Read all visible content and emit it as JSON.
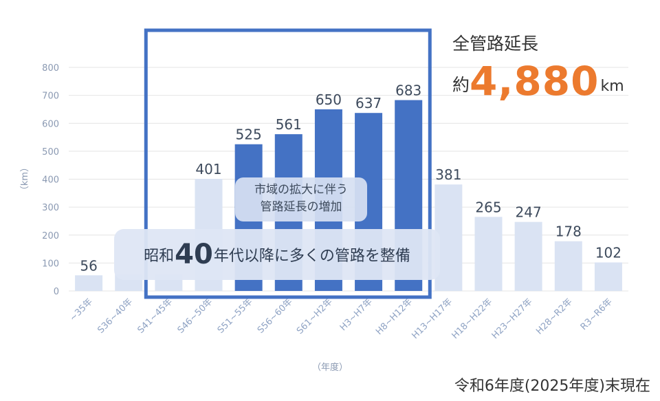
{
  "chart_data": {
    "type": "bar",
    "categories": [
      "~35年",
      "S36~40年",
      "S41~45年",
      "S46~50年",
      "S51~55年",
      "S56~60年",
      "S61~H2年",
      "H3~H7年",
      "H8~H12年",
      "H13~H17年",
      "H18~H22年",
      "H23~H27年",
      "H28~R2年",
      "R3~R6年"
    ],
    "values": [
      56,
      60,
      60,
      401,
      525,
      561,
      650,
      637,
      683,
      381,
      265,
      247,
      178,
      102
    ],
    "value_labels": [
      "56",
      "",
      "",
      "401",
      "525",
      "561",
      "650",
      "637",
      "683",
      "381",
      "265",
      "247",
      "178",
      "102"
    ],
    "highlight": [
      false,
      false,
      false,
      false,
      true,
      true,
      true,
      true,
      true,
      false,
      false,
      false,
      false,
      false
    ],
    "ylabel": "（km）",
    "xlabel": "（年度）",
    "yticks": [
      0,
      100,
      200,
      300,
      400,
      500,
      600,
      700,
      800
    ],
    "ylim": [
      0,
      800
    ],
    "grid": true,
    "colors": {
      "highlight": "#4472c4",
      "normal": "#dae3f3",
      "box": "#4472c4"
    }
  },
  "total": {
    "title": "全管路延長",
    "prefix": "約",
    "value": "4,880",
    "unit": "km"
  },
  "callouts": {
    "small_line1": "市域の拡大に伴う",
    "small_line2": "管路延長の増加",
    "big_pre": "昭和",
    "big_num": "40",
    "big_post": "年代以降に多くの管路を整備"
  },
  "asof": "令和6年度(2025年度)末現在"
}
